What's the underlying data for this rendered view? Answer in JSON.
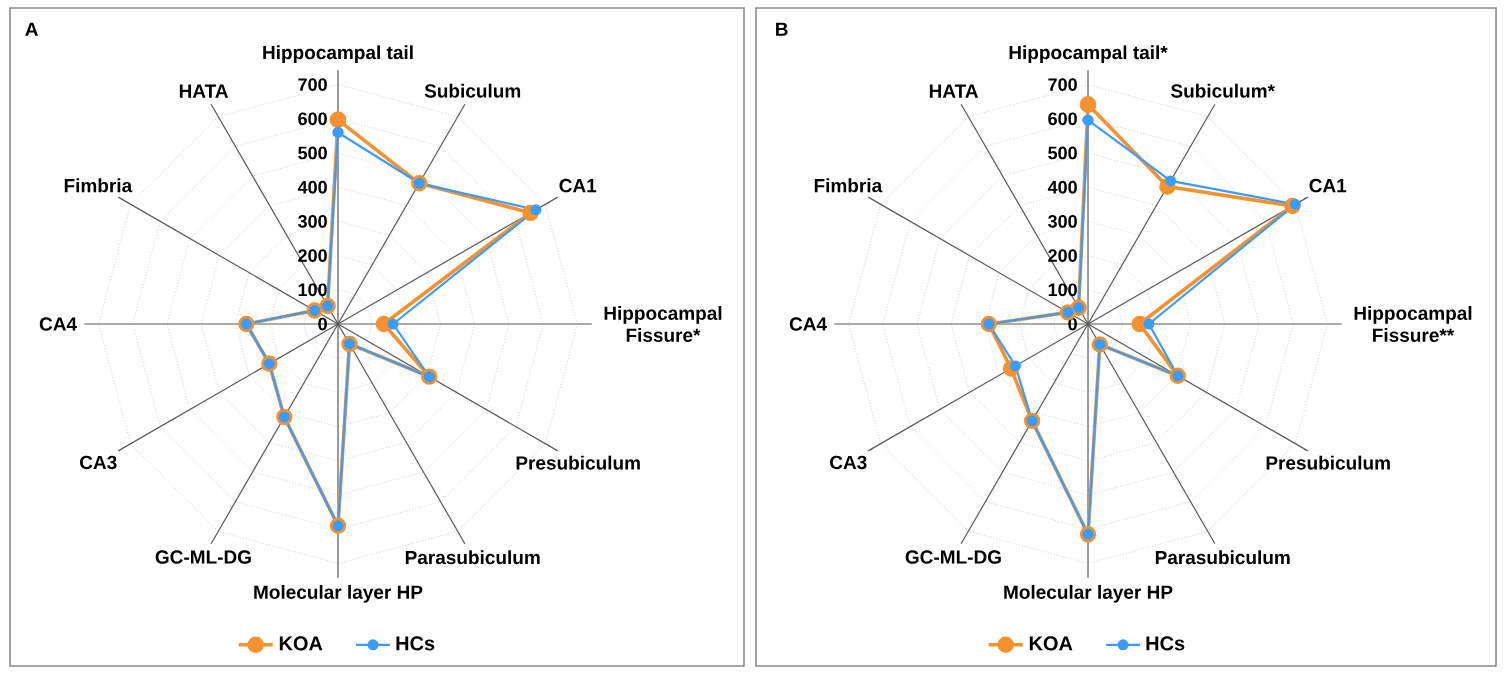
{
  "chart_data": [
    {
      "type": "radar",
      "title": "A",
      "categories": [
        "Hippocampal tail",
        "Subiculum",
        "CA1",
        "Hippocampal Fissure*",
        "Presubiculum",
        "Parasubiculum",
        "Molecular layer HP",
        "GC-ML-DG",
        "CA3",
        "CA4",
        "Fimbria",
        "HATA"
      ],
      "series": [
        {
          "name": "KOA",
          "color": "#f5922f",
          "values": [
            597,
            475,
            650,
            134,
            308,
            67,
            590,
            314,
            232,
            268,
            79,
            61
          ]
        },
        {
          "name": "HCs",
          "color": "#3b9cff",
          "values": [
            560,
            475,
            668,
            161,
            308,
            67,
            590,
            314,
            232,
            268,
            79,
            61
          ]
        }
      ],
      "ylim": [
        0,
        700
      ],
      "yticks": [
        0,
        100,
        200,
        300,
        400,
        500,
        600,
        700
      ],
      "grid": true,
      "legend": "bottom",
      "marker": "circle"
    },
    {
      "type": "radar",
      "title": "B",
      "categories": [
        "Hippocampal tail*",
        "Subiculum*",
        "CA1",
        "Hippocampal Fissure**",
        "Presubiculum",
        "Parasubiculum",
        "Molecular layer HP",
        "GC-ML-DG",
        "CA3",
        "CA4",
        "Fimbria",
        "HATA"
      ],
      "series": [
        {
          "name": "KOA",
          "color": "#f5922f",
          "values": [
            642,
            464,
            690,
            151,
            303,
            69,
            615,
            327,
            260,
            290,
            68,
            55
          ]
        },
        {
          "name": "HCs",
          "color": "#3b9cff",
          "values": [
            596,
            483,
            700,
            178,
            303,
            69,
            615,
            327,
            245,
            290,
            68,
            55
          ]
        }
      ],
      "ylim": [
        0,
        700
      ],
      "yticks": [
        0,
        100,
        200,
        300,
        400,
        500,
        600,
        700
      ],
      "grid": true,
      "legend": "bottom",
      "marker": "circle"
    }
  ]
}
